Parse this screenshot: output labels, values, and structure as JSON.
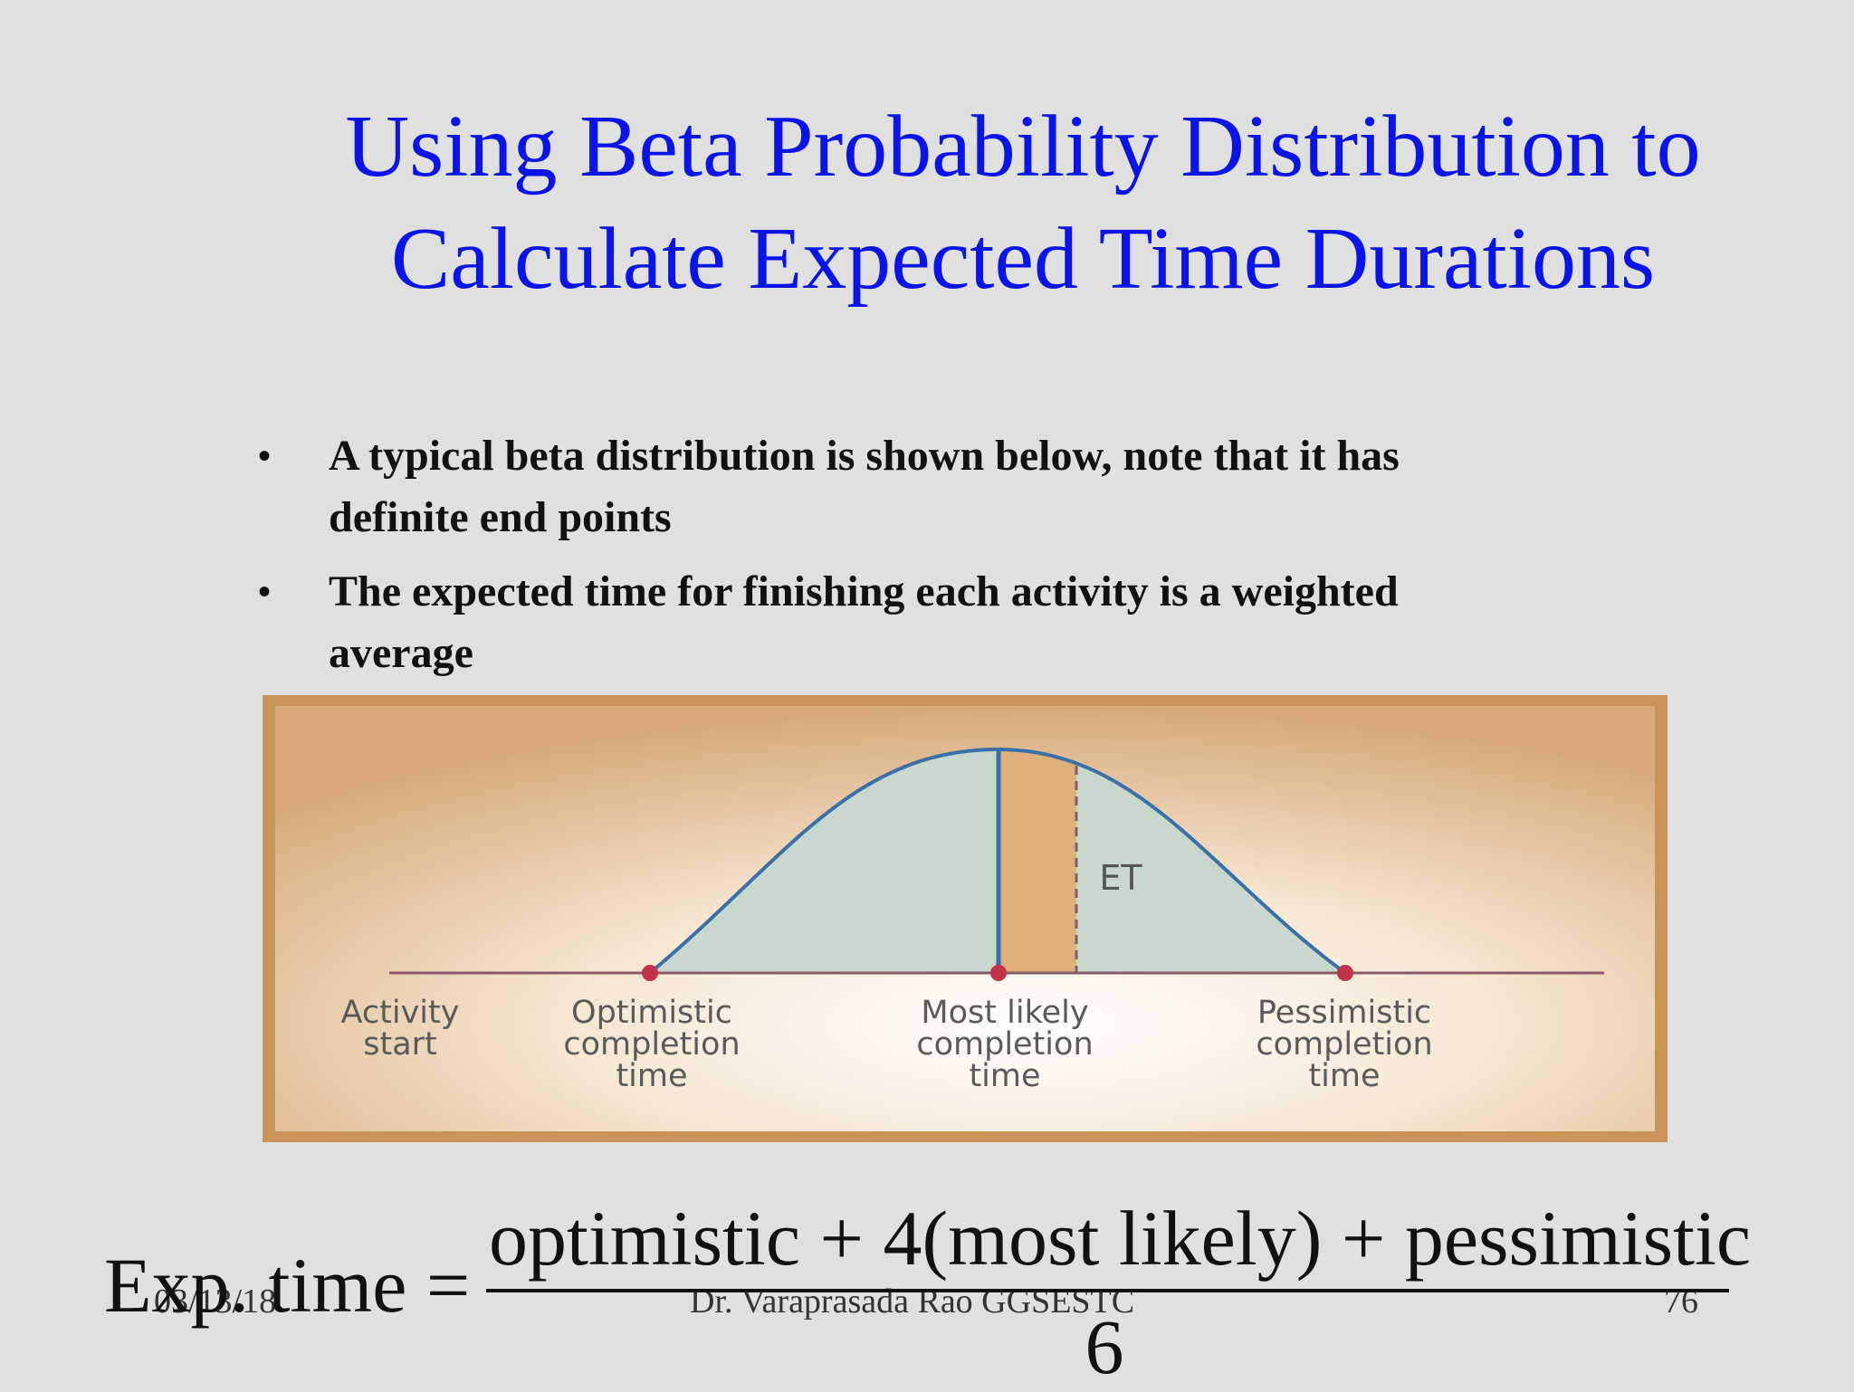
{
  "slide": {
    "title_line1": "Using Beta Probability Distribution to",
    "title_line2": "Calculate Expected Time Durations",
    "bullet_symbol": "•",
    "bullets": [
      {
        "line1": "A typical beta distribution is shown below, note that it has",
        "line2": "definite end points"
      },
      {
        "line1": "The expected time for finishing each activity is a weighted",
        "line2": "average"
      }
    ]
  },
  "figure": {
    "et_label": "ET",
    "labels": [
      {
        "l1": "Activity",
        "l2": "start",
        "l3": ""
      },
      {
        "l1": "Optimistic",
        "l2": "completion",
        "l3": "time"
      },
      {
        "l1": "Most likely",
        "l2": "completion",
        "l3": "time"
      },
      {
        "l1": "Pessimistic",
        "l2": "completion",
        "l3": "time"
      }
    ],
    "colors": {
      "curve": "#3a6fa8",
      "fill": "#c8d8cc",
      "band": "#deb07a",
      "point": "#c2324a",
      "axis": "#8a5a6a"
    }
  },
  "formula": {
    "lhs": "Exp. time =",
    "numerator": "optimistic + 4(most likely) + pessimistic",
    "denominator": "6"
  },
  "footer": {
    "date": "03/13/18",
    "author": "Dr. Varaprasada Rao GGSESTC",
    "page": "76"
  }
}
